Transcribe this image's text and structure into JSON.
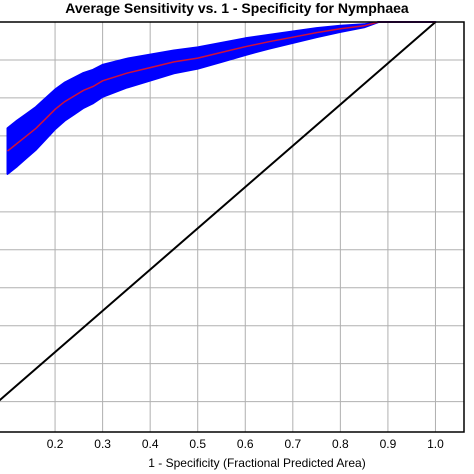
{
  "chart_data": {
    "type": "line",
    "title": "Average Sensitivity vs. 1 - Specificity for Nymphaea",
    "xlabel": "1 - Specificity (Fractional Predicted Area)",
    "ylabel": "",
    "xlim": [
      0.08,
      1.06
    ],
    "ylim": [
      -0.08,
      1.0
    ],
    "x_ticks": [
      0.2,
      0.3,
      0.4,
      0.5,
      0.6,
      0.7,
      0.8,
      0.9,
      1.0
    ],
    "x_tick_labels": [
      "0.2",
      "0.3",
      "0.4",
      "0.5",
      "0.6",
      "0.7",
      "0.8",
      "0.9",
      "1.0"
    ],
    "y_gridlines": [
      0.0,
      0.1,
      0.2,
      0.3,
      0.4,
      0.5,
      0.6,
      0.7,
      0.8,
      0.9,
      1.0
    ],
    "grid": true,
    "colors": {
      "mean_line": "#d0103a",
      "band": "#0000ff",
      "reference": "#000000",
      "grid": "#b0b0b0"
    },
    "series": [
      {
        "x": [
          0.1,
          0.12,
          0.14,
          0.16,
          0.18,
          0.2,
          0.22,
          0.24,
          0.26,
          0.28,
          0.3,
          0.35,
          0.4,
          0.45,
          0.5,
          0.55,
          0.6,
          0.65,
          0.7,
          0.75,
          0.8,
          0.85,
          0.88,
          1.0
        ],
        "y": [
          0.66,
          0.68,
          0.7,
          0.72,
          0.745,
          0.77,
          0.79,
          0.805,
          0.82,
          0.83,
          0.845,
          0.865,
          0.88,
          0.895,
          0.905,
          0.92,
          0.935,
          0.948,
          0.96,
          0.972,
          0.982,
          0.99,
          1.0,
          1.0
        ],
        "band_halfwidth": [
          0.06,
          0.06,
          0.058,
          0.056,
          0.054,
          0.052,
          0.05,
          0.048,
          0.046,
          0.044,
          0.042,
          0.038,
          0.034,
          0.03,
          0.028,
          0.025,
          0.022,
          0.018,
          0.015,
          0.012,
          0.008,
          0.004,
          0.0,
          0.0
        ]
      },
      {
        "x": [
          0.08,
          1.0
        ],
        "y": [
          0.0,
          1.0
        ]
      }
    ]
  }
}
